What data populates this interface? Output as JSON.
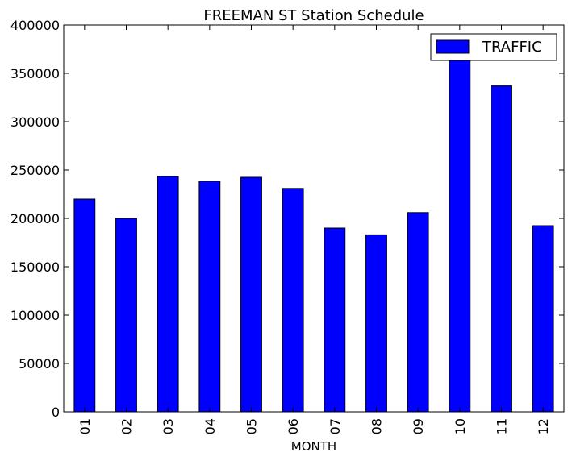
{
  "chart_data": {
    "type": "bar",
    "title": "FREEMAN ST Station Schedule",
    "xlabel": "MONTH",
    "ylabel": "",
    "categories": [
      "01",
      "02",
      "03",
      "04",
      "05",
      "06",
      "07",
      "08",
      "09",
      "10",
      "11",
      "12"
    ],
    "series": [
      {
        "name": "TRAFFIC",
        "color": "#0000ff",
        "values": [
          220000,
          200000,
          243500,
          238500,
          242500,
          231000,
          190000,
          183000,
          206000,
          365000,
          337000,
          192500
        ]
      }
    ],
    "ylim": [
      0,
      400000
    ],
    "yticks": [
      "0",
      "50000",
      "100000",
      "150000",
      "200000",
      "250000",
      "300000",
      "350000",
      "400000"
    ],
    "ytick_values": [
      0,
      50000,
      100000,
      150000,
      200000,
      250000,
      300000,
      350000,
      400000
    ],
    "grid": false,
    "legend_position": "top-right"
  }
}
